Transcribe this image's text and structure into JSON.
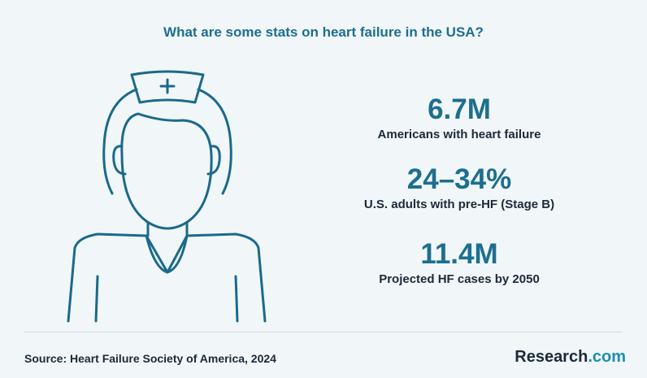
{
  "title": "What are some stats on heart failure in the USA?",
  "stats": [
    {
      "value": "6.7M",
      "label": "Americans with heart failure"
    },
    {
      "value": "24–34%",
      "label": "U.S. adults with pre-HF (Stage B)"
    },
    {
      "value": "11.4M",
      "label": "Projected HF cases by 2050"
    }
  ],
  "source": "Source:  Heart Failure Society of America, 2024",
  "brand": {
    "name": "Research",
    "suffix": ".com"
  }
}
